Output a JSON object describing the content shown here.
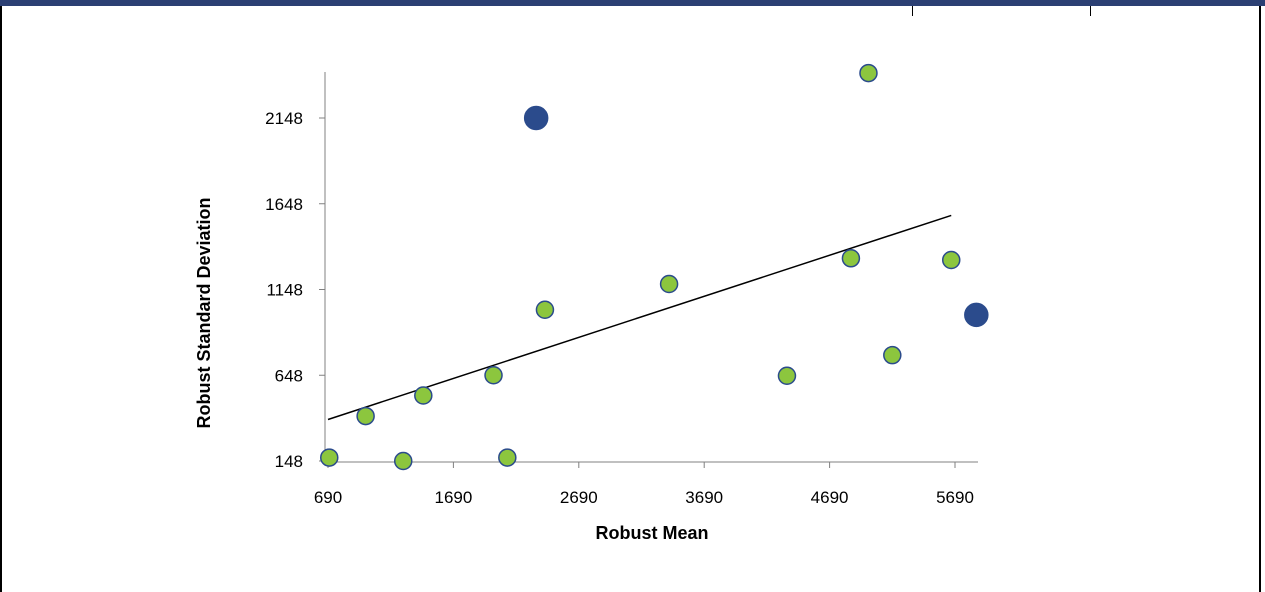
{
  "chart_data": {
    "type": "scatter",
    "xlabel": "Robust Mean",
    "ylabel": "Robust Standard Deviation",
    "x_ticks": [
      "690",
      "1690",
      "2690",
      "3690",
      "4690",
      "5690"
    ],
    "y_ticks": [
      "148",
      "648",
      "1148",
      "1648",
      "2148"
    ],
    "xlim": [
      690,
      5840
    ],
    "ylim": [
      148,
      2460
    ],
    "grid": false,
    "legend": "none",
    "series": [
      {
        "marker_color": "#8cc63e",
        "edge_color": "#2b4b8c",
        "points": [
          {
            "x": 700,
            "y": 168
          },
          {
            "x": 990,
            "y": 410
          },
          {
            "x": 1290,
            "y": 148
          },
          {
            "x": 1450,
            "y": 530
          },
          {
            "x": 2010,
            "y": 648
          },
          {
            "x": 2120,
            "y": 168
          },
          {
            "x": 2420,
            "y": 1030
          },
          {
            "x": 3410,
            "y": 1180
          },
          {
            "x": 4350,
            "y": 645
          },
          {
            "x": 4860,
            "y": 1330
          },
          {
            "x": 5000,
            "y": 2410
          },
          {
            "x": 5190,
            "y": 765
          },
          {
            "x": 5660,
            "y": 1320
          }
        ]
      },
      {
        "marker_color": "#2b4b8c",
        "edge_color": "#2b4b8c",
        "points": [
          {
            "x": 2350,
            "y": 2148
          },
          {
            "x": 5860,
            "y": 1000
          }
        ]
      }
    ],
    "trendline": {
      "x": [
        690,
        5660
      ],
      "y": [
        390,
        1580
      ],
      "color": "#000000"
    }
  }
}
